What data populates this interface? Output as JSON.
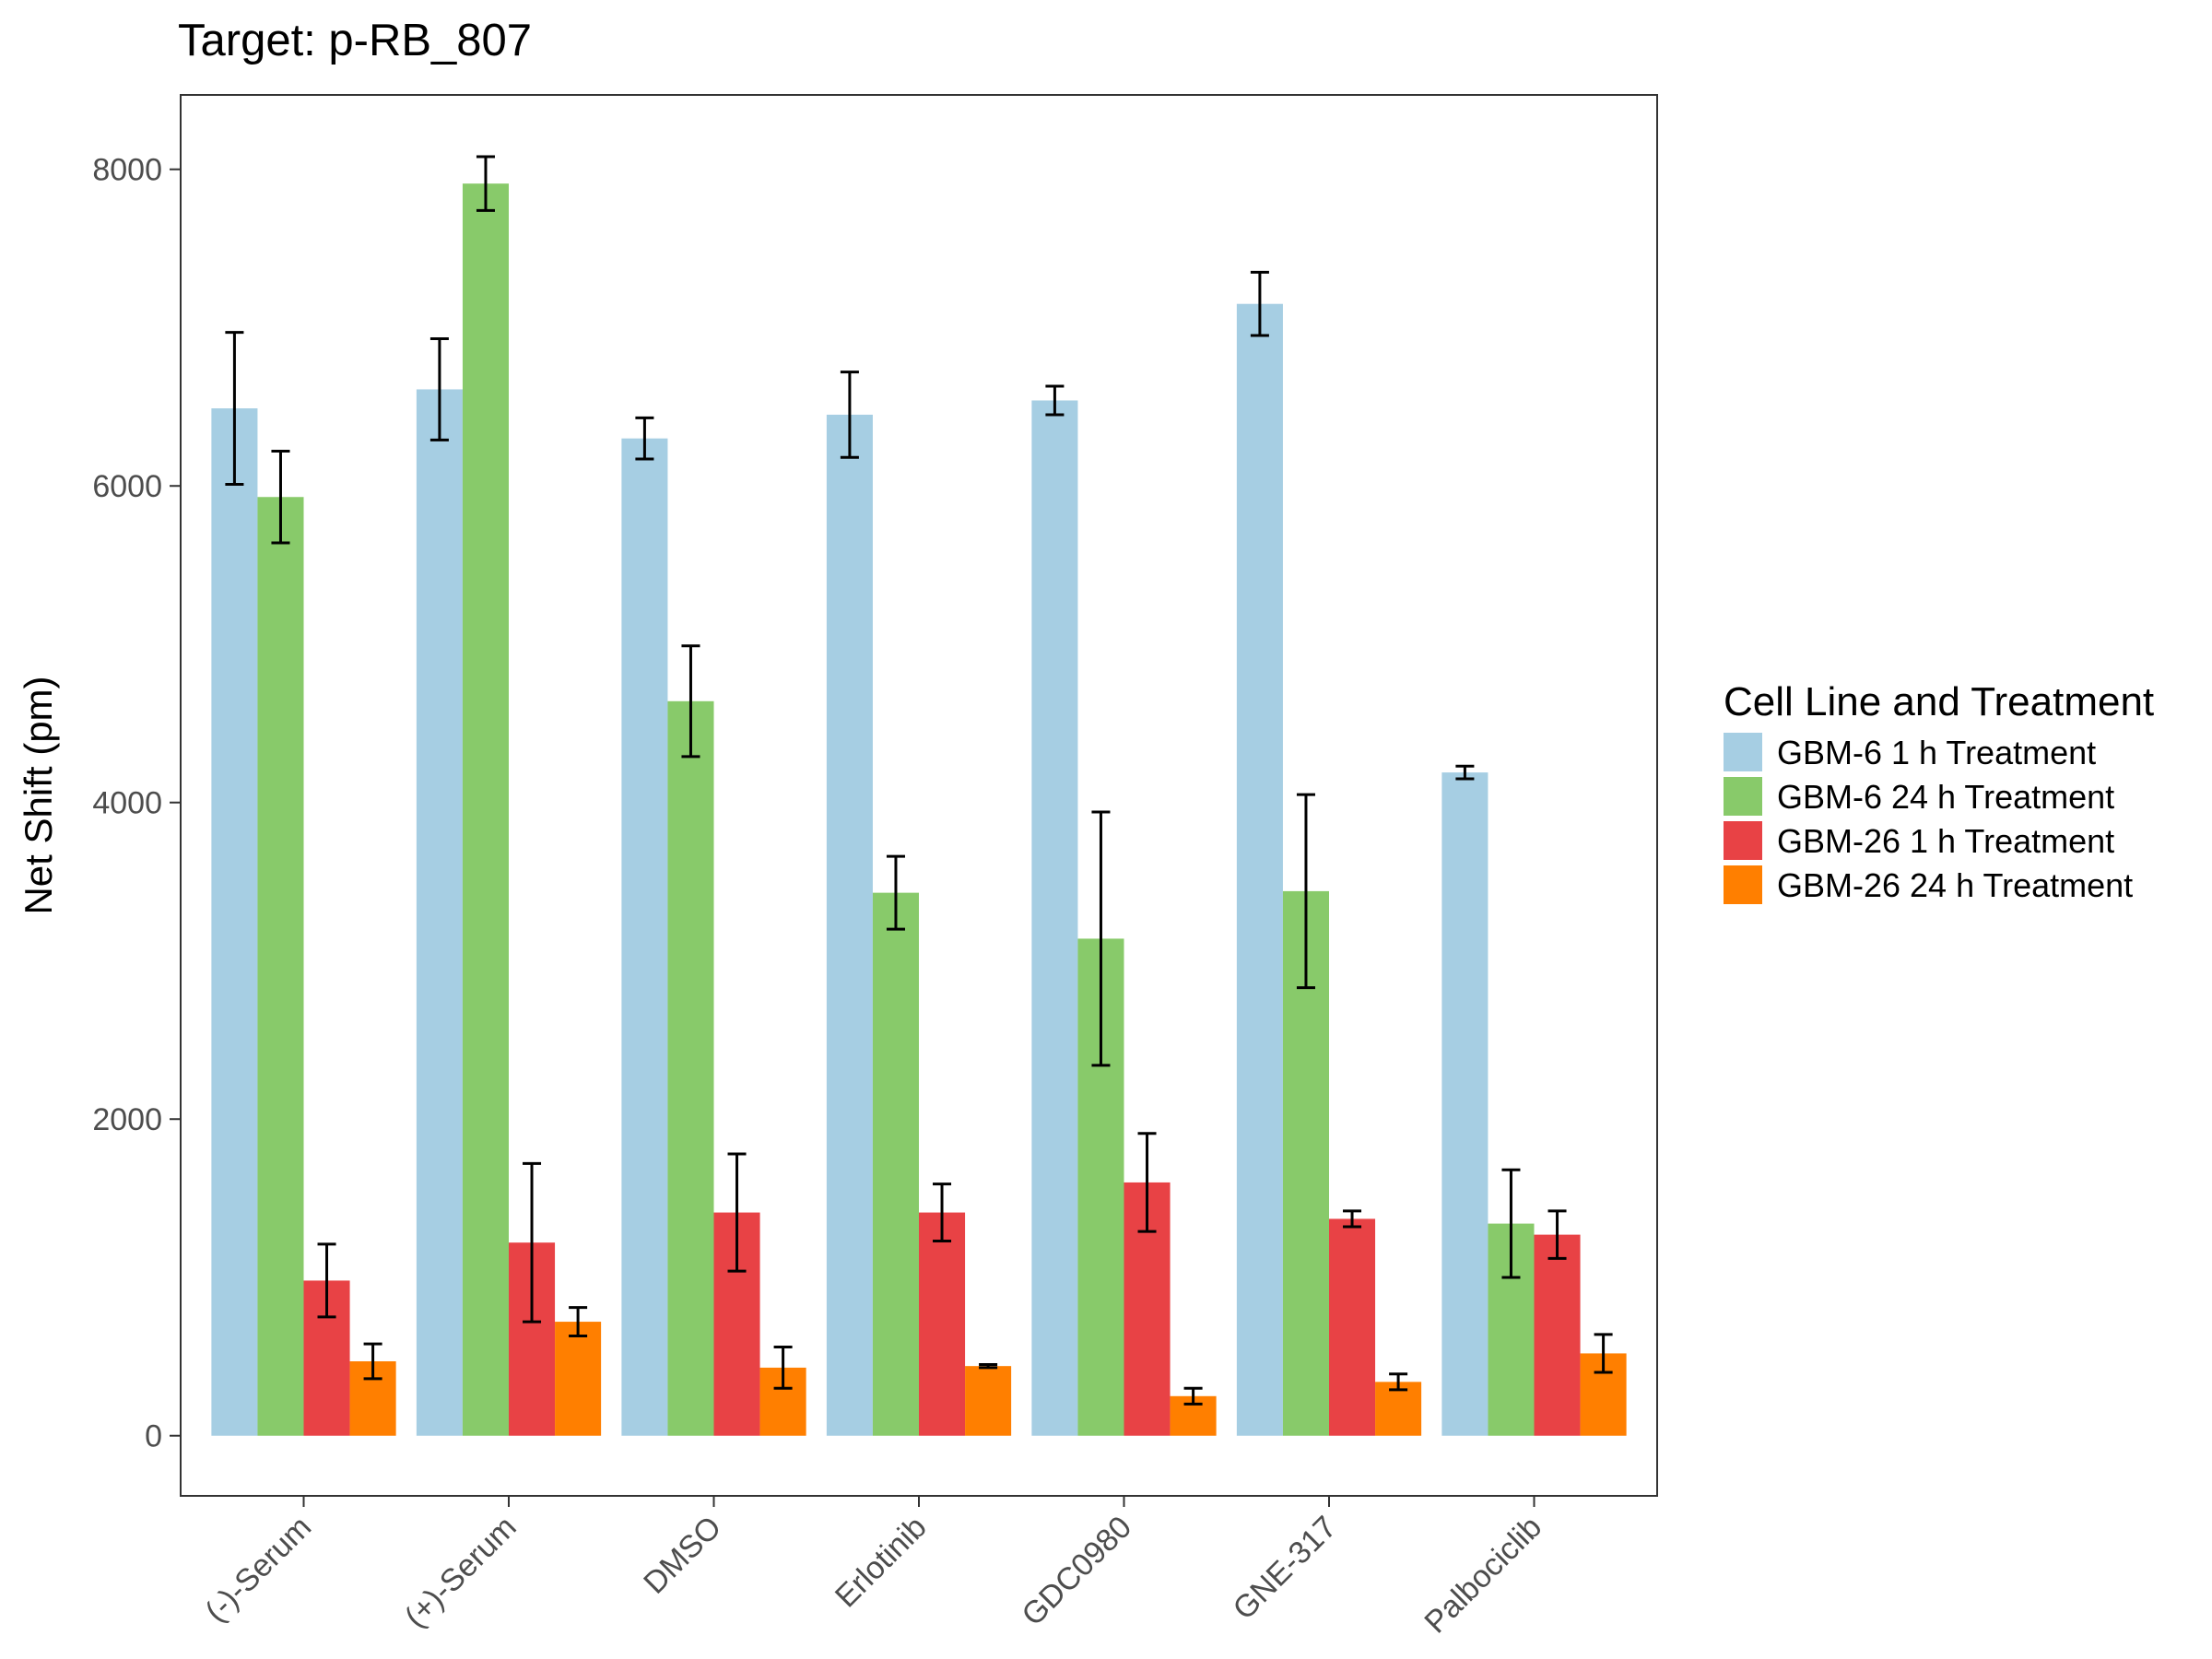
{
  "chart_data": {
    "type": "bar",
    "title": "Target: p-RB_807",
    "xlabel": "",
    "ylabel": "Net Shift (pm)",
    "ylim": [
      -380,
      8470
    ],
    "yticks": [
      0,
      2000,
      4000,
      6000,
      8000
    ],
    "grid": false,
    "legend_title": "Cell Line and Treatment",
    "legend_position": "right",
    "categories": [
      "(-)-Serum",
      "(+)-Serum",
      "DMSO",
      "Erlotinib",
      "GDC0980",
      "GNE-317",
      "Palbociclib"
    ],
    "series": [
      {
        "name": "GBM-6 1 h Treatment",
        "color": "#a6cee3",
        "values": [
          6490,
          6610,
          6300,
          6450,
          6540,
          7150,
          4190
        ],
        "errors": [
          480,
          320,
          130,
          270,
          90,
          200,
          40
        ]
      },
      {
        "name": "GBM-6 24 h Treatment",
        "color": "#88ca6a",
        "values": [
          5930,
          7910,
          4640,
          3430,
          3140,
          3440,
          1340
        ],
        "errors": [
          290,
          170,
          350,
          230,
          800,
          610,
          340
        ]
      },
      {
        "name": "GBM-26 1 h Treatment",
        "color": "#e84245",
        "values": [
          980,
          1220,
          1410,
          1410,
          1600,
          1370,
          1270
        ],
        "errors": [
          230,
          500,
          370,
          180,
          310,
          50,
          150
        ]
      },
      {
        "name": "GBM-26 24 h Treatment",
        "color": "#ff7f00",
        "values": [
          470,
          720,
          430,
          440,
          250,
          340,
          520
        ],
        "errors": [
          110,
          90,
          130,
          10,
          50,
          50,
          120
        ]
      }
    ]
  }
}
